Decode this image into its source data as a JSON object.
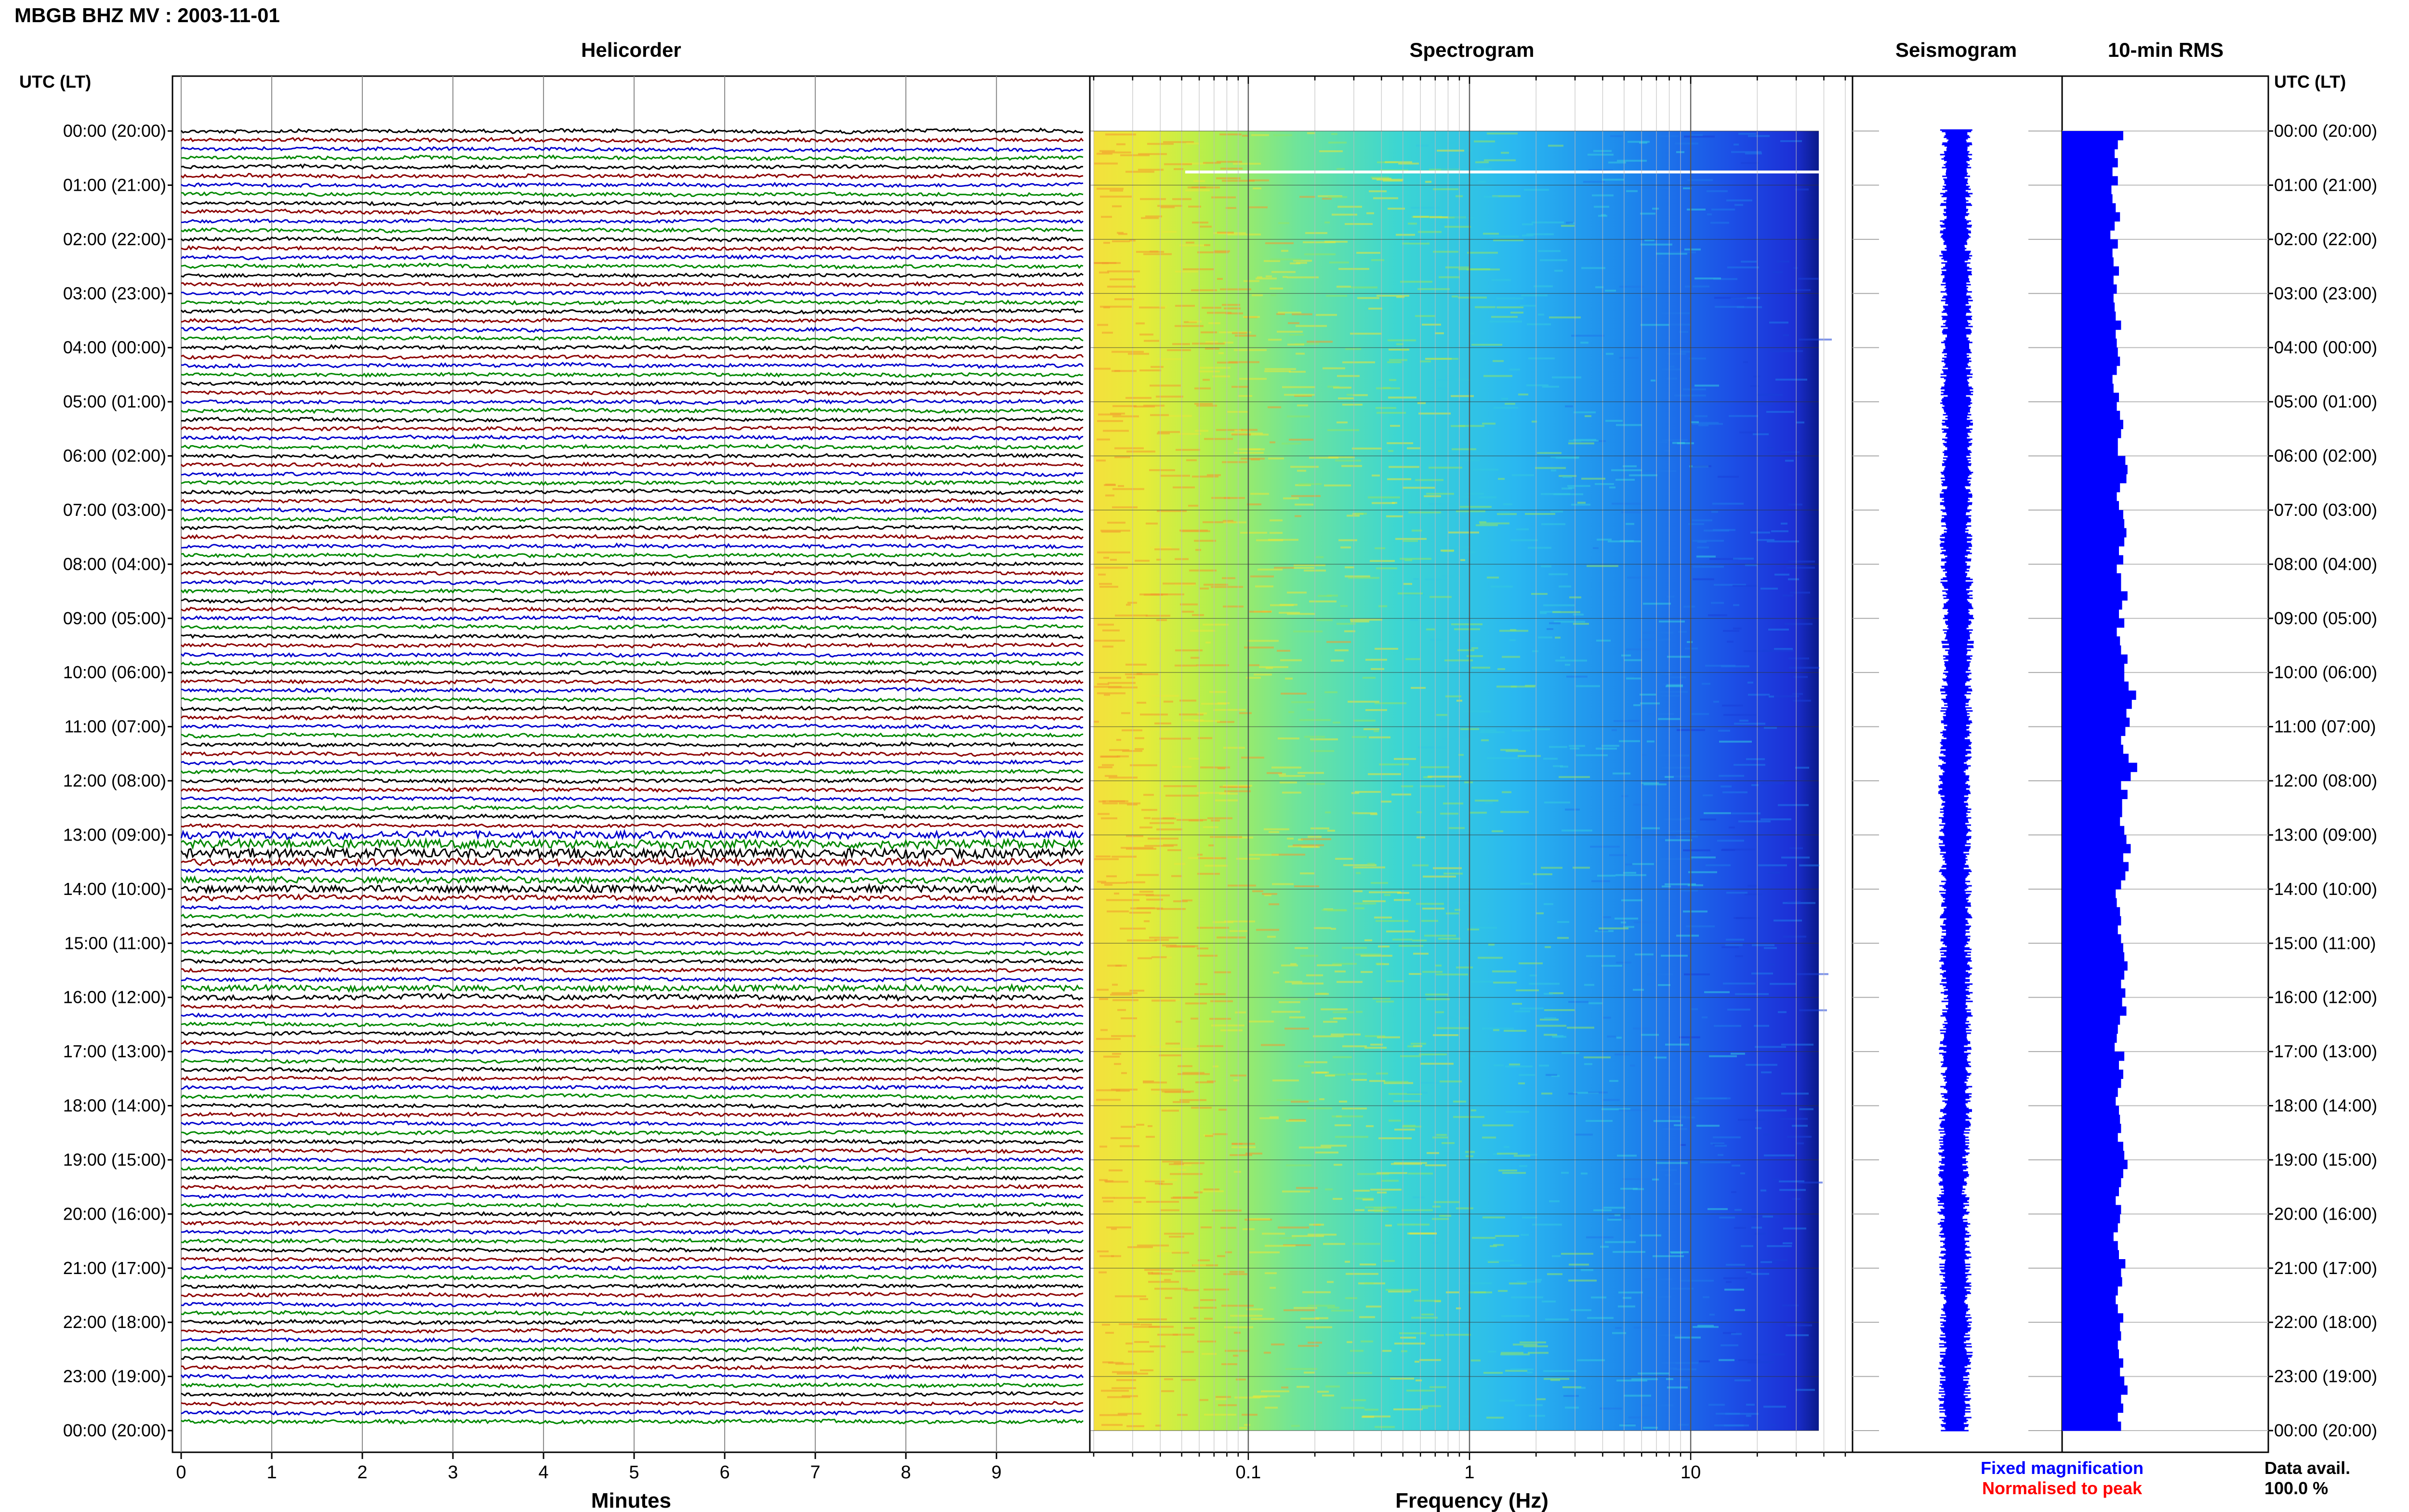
{
  "header": {
    "title": "MBGB BHZ MV : 2003-11-01",
    "left_axis_title": "UTC (LT)",
    "right_axis_title": "UTC (LT)"
  },
  "panels": {
    "helicorder": {
      "title": "Helicorder",
      "xlabel": "Minutes",
      "ticks": [
        "0",
        "1",
        "2",
        "3",
        "4",
        "5",
        "6",
        "7",
        "8",
        "9"
      ]
    },
    "spectrogram": {
      "title": "Spectrogram",
      "xlabel": "Frequency (Hz)",
      "ticks": [
        {
          "label": "0.1",
          "value": 0.1
        },
        {
          "label": "1",
          "value": 1
        },
        {
          "label": "10",
          "value": 10
        }
      ]
    },
    "seismogram": {
      "title": "Seismogram"
    },
    "rms": {
      "title": "10-min RMS"
    }
  },
  "time_labels": [
    "00:00 (20:00)",
    "01:00 (21:00)",
    "02:00 (22:00)",
    "03:00 (23:00)",
    "04:00 (00:00)",
    "05:00 (01:00)",
    "06:00 (02:00)",
    "07:00 (03:00)",
    "08:00 (04:00)",
    "09:00 (05:00)",
    "10:00 (06:00)",
    "11:00 (07:00)",
    "12:00 (08:00)",
    "13:00 (09:00)",
    "14:00 (10:00)",
    "15:00 (11:00)",
    "16:00 (12:00)",
    "17:00 (13:00)",
    "18:00 (14:00)",
    "19:00 (15:00)",
    "20:00 (16:00)",
    "21:00 (17:00)",
    "22:00 (18:00)",
    "23:00 (19:00)",
    "00:00 (20:00)"
  ],
  "legend": {
    "fixed_magnification": "Fixed magnification",
    "normalised_to_peak": "Normalised to peak",
    "data_avail_label": "Data avail.",
    "data_avail_value": "100.0 %"
  },
  "colors": {
    "trace_cycle": [
      "#000000",
      "#8b0000",
      "#0000cc",
      "#008800"
    ],
    "fixed_magnification": "#0000ff",
    "normalised_to_peak": "#ff0000",
    "rms_bar": "#0000ff",
    "seismogram": "#0000ff"
  },
  "chart_data": {
    "type": "heatmap",
    "title": "MBGB BHZ MV : 2003-11-01",
    "helicorder": {
      "lines_per_hour": 6,
      "minutes_per_line": 10,
      "hours": 24
    },
    "spectrogram": {
      "x_scale": "log",
      "xlim": [
        0.02,
        50
      ],
      "xlabel": "Frequency (Hz)"
    },
    "rms_10min_relative": [
      0.57,
      0.52,
      0.49,
      0.52,
      0.47,
      0.52,
      0.46,
      0.47,
      0.5,
      0.54,
      0.49,
      0.45,
      0.52,
      0.47,
      0.48,
      0.53,
      0.48,
      0.51,
      0.48,
      0.49,
      0.5,
      0.55,
      0.5,
      0.51,
      0.52,
      0.54,
      0.51,
      0.47,
      0.48,
      0.53,
      0.51,
      0.54,
      0.57,
      0.55,
      0.52,
      0.52,
      0.59,
      0.61,
      0.6,
      0.54,
      0.51,
      0.53,
      0.57,
      0.58,
      0.6,
      0.58,
      0.53,
      0.57,
      0.51,
      0.55,
      0.55,
      0.61,
      0.56,
      0.53,
      0.58,
      0.51,
      0.54,
      0.55,
      0.61,
      0.58,
      0.58,
      0.62,
      0.69,
      0.65,
      0.6,
      0.63,
      0.59,
      0.55,
      0.57,
      0.62,
      0.7,
      0.64,
      0.55,
      0.61,
      0.56,
      0.56,
      0.54,
      0.58,
      0.6,
      0.64,
      0.57,
      0.62,
      0.59,
      0.55,
      0.5,
      0.51,
      0.54,
      0.55,
      0.52,
      0.55,
      0.57,
      0.58,
      0.61,
      0.58,
      0.55,
      0.59,
      0.56,
      0.6,
      0.54,
      0.52,
      0.51,
      0.49,
      0.58,
      0.53,
      0.57,
      0.55,
      0.52,
      0.5,
      0.53,
      0.54,
      0.55,
      0.52,
      0.57,
      0.58,
      0.61,
      0.57,
      0.55,
      0.53,
      0.5,
      0.55,
      0.54,
      0.52,
      0.48,
      0.52,
      0.53,
      0.59,
      0.55,
      0.56,
      0.52,
      0.5,
      0.52,
      0.57,
      0.54,
      0.55,
      0.52,
      0.53,
      0.57,
      0.54,
      0.58,
      0.61,
      0.55,
      0.57,
      0.52,
      0.55
    ]
  }
}
